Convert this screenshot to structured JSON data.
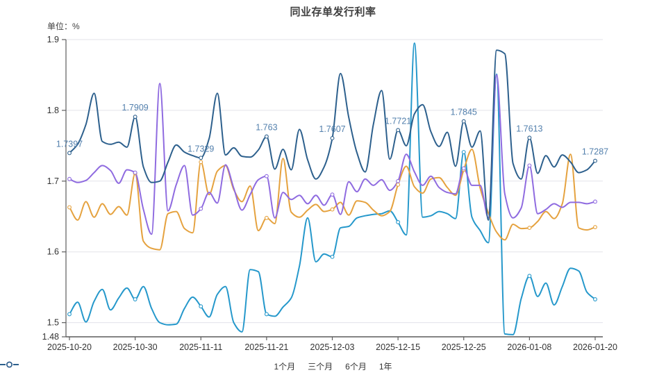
{
  "title": "同业存单发行利率",
  "unit_label": "单位：%",
  "colors": {
    "series_1m": "#2598cb",
    "series_3m": "#e5a23f",
    "series_6m": "#8f6be0",
    "series_1y": "#2d608d",
    "data_label": "#5380ad",
    "grid": "#e3e3e9",
    "axis": "#5c5c5c",
    "tick_text": "#333333",
    "title_text": "#404040"
  },
  "chart_data": {
    "type": "line",
    "smooth": true,
    "grid": true,
    "legend_position": "bottom",
    "ylabel": "单位：%",
    "ylim": [
      1.48,
      1.9
    ],
    "y_ticks": [
      1.9,
      1.8,
      1.7,
      1.6,
      1.5,
      1.48
    ],
    "n_points": 65,
    "x_tick_indices": [
      0,
      8,
      16,
      24,
      32,
      40,
      48,
      56,
      64
    ],
    "x_tick_labels": [
      "2025-10-20",
      "2025-10-30",
      "2025-11-11",
      "2025-11-21",
      "2025-12-03",
      "2025-12-15",
      "2025-12-25",
      "2026-01-08",
      "2026-01-20"
    ],
    "label_color": "#5380ad",
    "series": [
      {
        "id": "1m",
        "name": "1个月",
        "color": "#2598cb",
        "values": [
          1.512,
          1.529,
          1.501,
          1.53,
          1.547,
          1.518,
          1.535,
          1.549,
          1.533,
          1.551,
          1.52,
          1.5,
          1.497,
          1.498,
          1.52,
          1.536,
          1.523,
          1.508,
          1.54,
          1.551,
          1.5,
          1.487,
          1.575,
          1.572,
          1.512,
          1.509,
          1.522,
          1.535,
          1.58,
          1.648,
          1.586,
          1.597,
          1.593,
          1.634,
          1.636,
          1.648,
          1.651,
          1.653,
          1.654,
          1.658,
          1.642,
          1.624,
          1.895,
          1.649,
          1.651,
          1.657,
          1.654,
          1.647,
          1.741,
          1.649,
          1.63,
          1.613,
          1.851,
          1.484,
          1.483,
          1.534,
          1.566,
          1.537,
          1.556,
          1.525,
          1.551,
          1.577,
          1.573,
          1.543,
          1.533
        ]
      },
      {
        "id": "3m",
        "name": "三个月",
        "color": "#e5a23f",
        "values": [
          1.663,
          1.645,
          1.671,
          1.649,
          1.668,
          1.653,
          1.664,
          1.652,
          1.711,
          1.615,
          1.605,
          1.603,
          1.654,
          1.657,
          1.633,
          1.627,
          1.727,
          1.681,
          1.714,
          1.722,
          1.688,
          1.671,
          1.693,
          1.63,
          1.648,
          1.64,
          1.732,
          1.656,
          1.649,
          1.659,
          1.667,
          1.657,
          1.66,
          1.67,
          1.652,
          1.672,
          1.67,
          1.659,
          1.651,
          1.657,
          1.695,
          1.721,
          1.692,
          1.683,
          1.703,
          1.705,
          1.691,
          1.68,
          1.716,
          1.745,
          1.69,
          1.655,
          1.628,
          1.617,
          1.639,
          1.633,
          1.634,
          1.643,
          1.657,
          1.647,
          1.668,
          1.738,
          1.634,
          1.631,
          1.635
        ]
      },
      {
        "id": "6m",
        "name": "6个月",
        "color": "#8f6be0",
        "values": [
          1.703,
          1.698,
          1.701,
          1.712,
          1.722,
          1.715,
          1.697,
          1.716,
          1.712,
          1.66,
          1.625,
          1.838,
          1.658,
          1.695,
          1.722,
          1.652,
          1.661,
          1.684,
          1.669,
          1.723,
          1.69,
          1.659,
          1.681,
          1.702,
          1.707,
          1.648,
          1.684,
          1.674,
          1.68,
          1.668,
          1.68,
          1.666,
          1.681,
          1.653,
          1.699,
          1.685,
          1.703,
          1.694,
          1.702,
          1.687,
          1.7,
          1.738,
          1.713,
          1.694,
          1.707,
          1.691,
          1.684,
          1.682,
          1.718,
          1.694,
          1.694,
          1.648,
          1.85,
          1.682,
          1.648,
          1.662,
          1.722,
          1.654,
          1.66,
          1.668,
          1.663,
          1.67,
          1.67,
          1.668,
          1.671
        ]
      },
      {
        "id": "1y",
        "name": "1年",
        "color": "#2d608d",
        "values": [
          1.7397,
          1.752,
          1.78,
          1.824,
          1.756,
          1.752,
          1.755,
          1.748,
          1.7909,
          1.72,
          1.698,
          1.7,
          1.727,
          1.751,
          1.741,
          1.736,
          1.7329,
          1.76,
          1.824,
          1.737,
          1.747,
          1.735,
          1.734,
          1.744,
          1.763,
          1.717,
          1.745,
          1.716,
          1.773,
          1.73,
          1.703,
          1.72,
          1.7607,
          1.852,
          1.79,
          1.74,
          1.713,
          1.78,
          1.828,
          1.731,
          1.7721,
          1.75,
          1.795,
          1.808,
          1.77,
          1.749,
          1.769,
          1.721,
          1.7845,
          1.748,
          1.771,
          1.645,
          1.885,
          1.88,
          1.725,
          1.703,
          1.7613,
          1.711,
          1.736,
          1.72,
          1.737,
          1.727,
          1.712,
          1.716,
          1.7287
        ],
        "point_labels": {
          "0": "1.7397",
          "8": "1.7909",
          "16": "1.7329",
          "24": "1.763",
          "32": "1.7607",
          "40": "1.7721",
          "48": "1.7845",
          "56": "1.7613",
          "64": "1.7287"
        }
      }
    ]
  }
}
